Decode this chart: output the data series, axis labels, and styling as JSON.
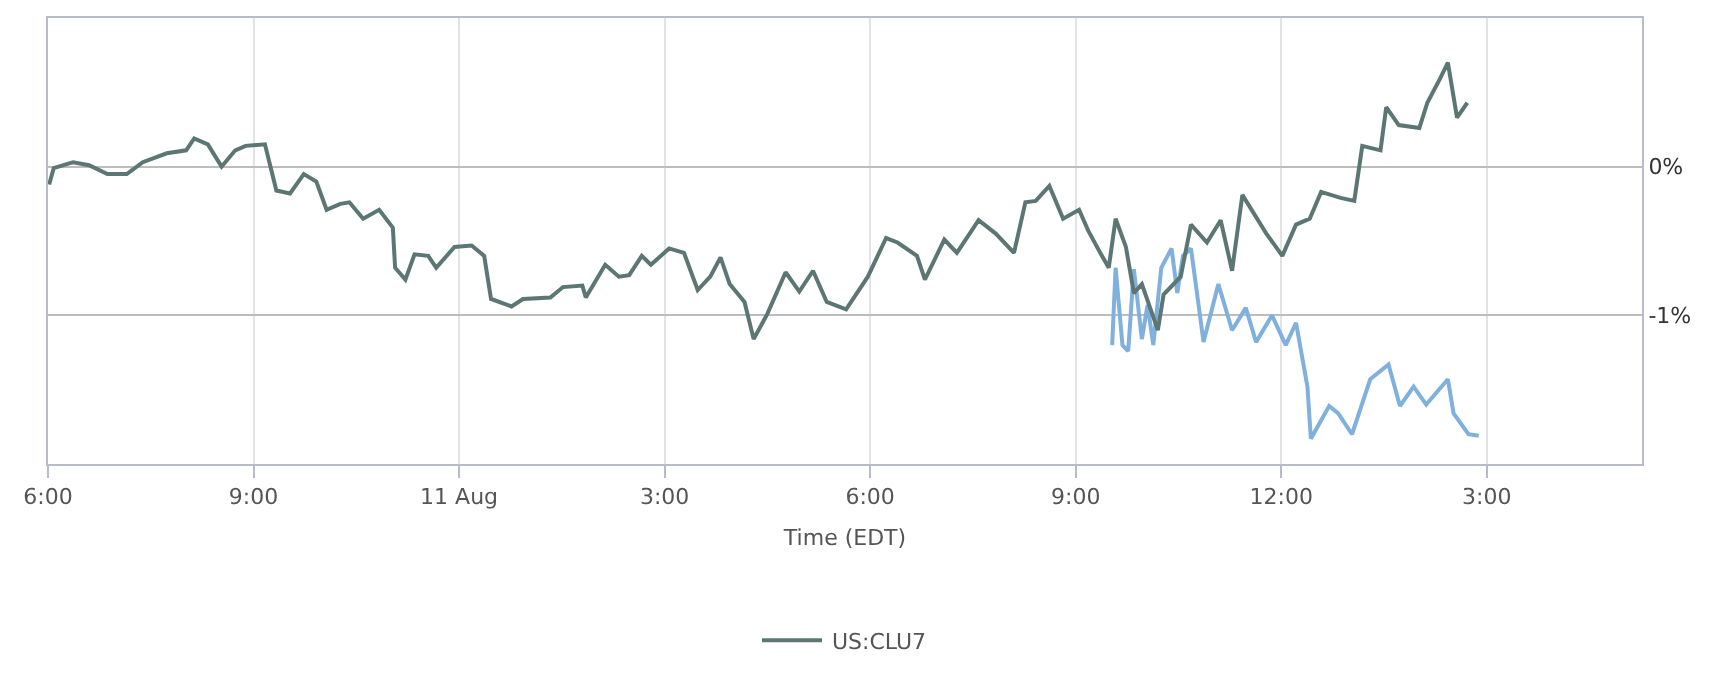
{
  "chart_data": {
    "type": "line",
    "xlabel": "Time (EDT)",
    "xlim": [
      "--08-10T18:00",
      "--08-11T17:16"
    ],
    "ylim": [
      -2,
      1
    ],
    "xticks": [
      {
        "value": "--08-10T18:00",
        "label": "6:00"
      },
      {
        "value": "--08-10T21:00",
        "label": "9:00"
      },
      {
        "value": "--08-11T00:00",
        "label": "11 Aug"
      },
      {
        "value": "--08-11T03:00",
        "label": "3:00"
      },
      {
        "value": "--08-11T06:00",
        "label": "6:00"
      },
      {
        "value": "--08-11T09:00",
        "label": "9:00"
      },
      {
        "value": "--08-11T12:00",
        "label": "12:00"
      },
      {
        "value": "--08-11T15:00",
        "label": "3:00"
      }
    ],
    "yticks": [
      {
        "value": 0,
        "label": "0%"
      },
      {
        "value": -1,
        "label": "-1%"
      }
    ],
    "grid": true,
    "legend": "bottom",
    "marker": "none",
    "line_style": "solid",
    "series": [
      {
        "color": "#7fb0de",
        "x": [
          "--08-11T09:32",
          "--08-11T09:35",
          "--08-11T09:41",
          "--08-11T09:46",
          "--08-11T09:51",
          "--08-11T09:58",
          "--08-11T10:03",
          "--08-11T10:08",
          "--08-11T10:15",
          "--08-11T10:24",
          "--08-11T10:29",
          "--08-11T10:34",
          "--08-11T10:41",
          "--08-11T10:52",
          "--08-11T11:05",
          "--08-11T11:17",
          "--08-11T11:29",
          "--08-11T11:38",
          "--08-11T11:52",
          "--08-11T12:04",
          "--08-11T12:13",
          "--08-11T12:23",
          "--08-11T12:26",
          "--08-11T12:42",
          "--08-11T12:50",
          "--08-11T13:02",
          "--08-11T13:18",
          "--08-11T13:34",
          "--08-11T13:44",
          "--08-11T13:56",
          "--08-11T14:07",
          "--08-11T14:26",
          "--08-11T14:31",
          "--08-11T14:44",
          "--08-11T14:53"
        ],
        "values": [
          -1.2,
          -0.68,
          -1.2,
          -1.24,
          -0.69,
          -1.16,
          -0.93,
          -1.2,
          -0.68,
          -0.55,
          -0.85,
          -0.6,
          -0.55,
          -1.18,
          -0.79,
          -1.1,
          -0.95,
          -1.18,
          -1,
          -1.2,
          -1.05,
          -1.48,
          -1.83,
          -1.61,
          -1.66,
          -1.8,
          -1.43,
          -1.33,
          -1.61,
          -1.48,
          -1.6,
          -1.43,
          -1.66,
          -1.8,
          -1.81
        ]
      },
      {
        "name": "US:CLU7",
        "color": "#5c7673",
        "x": [
          "--08-10T18:01",
          "--08-10T18:05",
          "--08-10T18:22",
          "--08-10T18:36",
          "--08-10T18:52",
          "--08-10T19:09",
          "--08-10T19:23",
          "--08-10T19:44",
          "--08-10T20:01",
          "--08-10T20:08",
          "--08-10T20:20",
          "--08-10T20:32",
          "--08-10T20:44",
          "--08-10T20:53",
          "--08-10T21:10",
          "--08-10T21:20",
          "--08-10T21:32",
          "--08-10T21:44",
          "--08-10T21:55",
          "--08-10T22:04",
          "--08-10T22:16",
          "--08-10T22:24",
          "--08-10T22:36",
          "--08-10T22:50",
          "--08-10T23:02",
          "--08-10T23:04",
          "--08-10T23:13",
          "--08-10T23:21",
          "--08-10T23:33",
          "--08-10T23:40",
          "--08-10T23:56",
          "--08-11T00:11",
          "--08-11T00:22",
          "--08-11T00:28",
          "--08-11T00:46",
          "--08-11T00:56",
          "--08-11T01:20",
          "--08-11T01:31",
          "--08-11T01:48",
          "--08-11T01:51",
          "--08-11T02:08",
          "--08-11T02:20",
          "--08-11T02:29",
          "--08-11T02:40",
          "--08-11T02:48",
          "--08-11T03:04",
          "--08-11T03:17",
          "--08-11T03:29",
          "--08-11T03:40",
          "--08-11T03:49",
          "--08-11T03:57",
          "--08-11T04:10",
          "--08-11T04:18",
          "--08-11T04:30",
          "--08-11T04:46",
          "--08-11T04:58",
          "--08-11T05:10",
          "--08-11T05:22",
          "--08-11T05:39",
          "--08-11T05:58",
          "--08-11T06:14",
          "--08-11T06:24",
          "--08-11T06:41",
          "--08-11T06:48",
          "--08-11T07:05",
          "--08-11T07:16",
          "--08-11T07:35",
          "--08-11T07:50",
          "--08-11T08:06",
          "--08-11T08:16",
          "--08-11T08:25",
          "--08-11T08:37",
          "--08-11T08:49",
          "--08-11T09:03",
          "--08-11T09:11",
          "--08-11T09:23",
          "--08-11T09:29",
          "--08-11T09:35",
          "--08-11T09:44",
          "--08-11T09:51",
          "--08-11T09:58",
          "--08-11T10:12",
          "--08-11T10:17",
          "--08-11T10:32",
          "--08-11T10:41",
          "--08-11T10:55",
          "--08-11T11:07",
          "--08-11T11:17",
          "--08-11T11:26",
          "--08-11T11:47",
          "--08-11T12:01",
          "--08-11T12:13",
          "--08-11T12:25",
          "--08-11T12:35",
          "--08-11T12:52",
          "--08-11T13:04",
          "--08-11T13:11",
          "--08-11T13:27",
          "--08-11T13:32",
          "--08-11T13:43",
          "--08-11T14:01",
          "--08-11T14:08",
          "--08-11T14:19",
          "--08-11T14:26",
          "--08-11T14:34",
          "--08-11T14:43"
        ],
        "values": [
          -0.12,
          -0.01,
          0.03,
          0.01,
          -0.05,
          -0.05,
          0.03,
          0.09,
          0.11,
          0.19,
          0.15,
          0,
          0.11,
          0.14,
          0.15,
          -0.16,
          -0.18,
          -0.05,
          -0.1,
          -0.29,
          -0.25,
          -0.24,
          -0.35,
          -0.29,
          -0.41,
          -0.68,
          -0.76,
          -0.59,
          -0.6,
          -0.68,
          -0.54,
          -0.53,
          -0.6,
          -0.89,
          -0.94,
          -0.89,
          -0.88,
          -0.81,
          -0.8,
          -0.88,
          -0.66,
          -0.74,
          -0.73,
          -0.6,
          -0.66,
          -0.55,
          -0.58,
          -0.83,
          -0.74,
          -0.61,
          -0.79,
          -0.91,
          -1.16,
          -0.99,
          -0.71,
          -0.84,
          -0.7,
          -0.91,
          -0.96,
          -0.74,
          -0.48,
          -0.51,
          -0.6,
          -0.76,
          -0.49,
          -0.58,
          -0.36,
          -0.45,
          -0.58,
          -0.24,
          -0.23,
          -0.13,
          -0.35,
          -0.29,
          -0.43,
          -0.6,
          -0.68,
          -0.35,
          -0.54,
          -0.85,
          -0.79,
          -1.1,
          -0.86,
          -0.74,
          -0.39,
          -0.51,
          -0.36,
          -0.7,
          -0.19,
          -0.45,
          -0.6,
          -0.39,
          -0.35,
          -0.17,
          -0.21,
          -0.23,
          0.14,
          0.11,
          0.4,
          0.28,
          0.26,
          0.43,
          0.59,
          0.7,
          0.33,
          0.43
        ]
      }
    ]
  }
}
